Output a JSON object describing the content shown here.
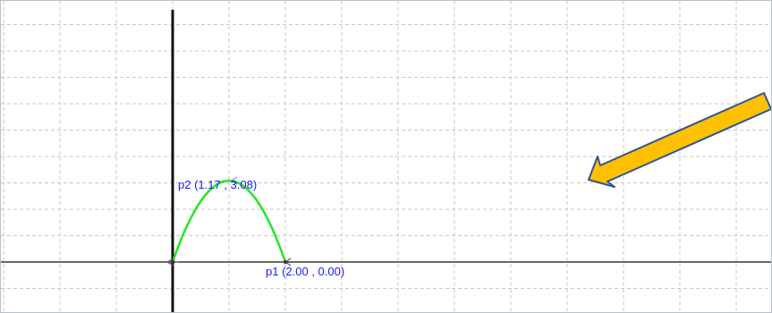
{
  "colors": {
    "grid": "#c8c8c8",
    "axis": "#111111",
    "curve": "#22e622",
    "label": "#1a1aff",
    "arrow_fill": "#ffc000",
    "arrow_stroke": "#2f5597"
  },
  "points": {
    "p1": {
      "name": "p1",
      "label": "p1 (2.00 , 0.00)",
      "x": 2.0,
      "y": 0.0
    },
    "p2": {
      "name": "p2",
      "label": "p2 (1.17 , 3.08)",
      "x": 1.17,
      "y": 3.08
    }
  },
  "curve": {
    "type": "parabola",
    "from": [
      0,
      0
    ],
    "to": [
      2.0,
      0.0
    ],
    "peak_y": 3.08
  },
  "annotation": {
    "type": "arrow",
    "color_name": "orange"
  }
}
